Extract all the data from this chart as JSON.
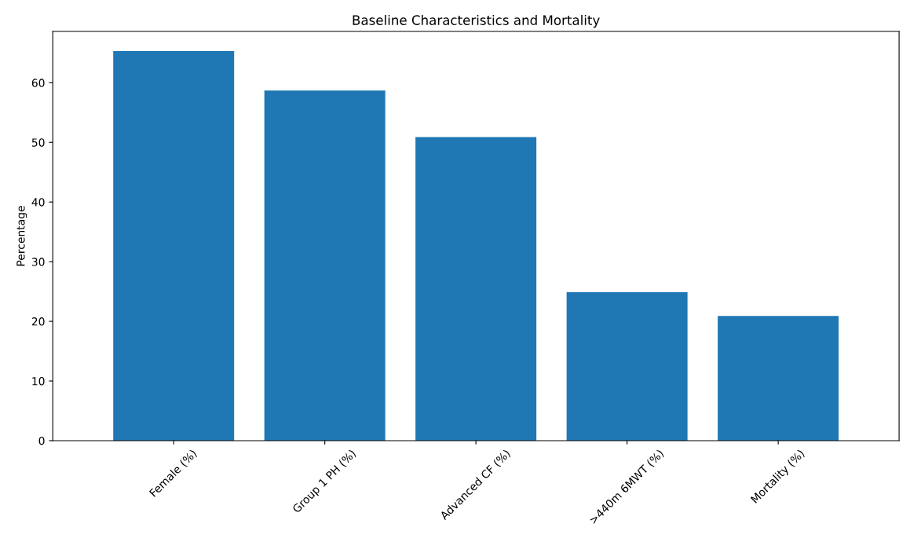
{
  "chart_data": {
    "type": "bar",
    "title": "Baseline Characteristics and Mortality",
    "ylabel": "Percentage",
    "categories": [
      "Female (%)",
      "Group 1 PH (%)",
      "Advanced CF (%)",
      ">440m 6MWT (%)",
      "Mortality (%)"
    ],
    "values": [
      65.3,
      58.7,
      50.9,
      24.9,
      20.9
    ],
    "color": "#1f77b4",
    "ylim": [
      0,
      68.6
    ],
    "yticks": [
      0,
      10,
      20,
      30,
      40,
      50,
      60
    ],
    "grid": false,
    "legend": false
  }
}
